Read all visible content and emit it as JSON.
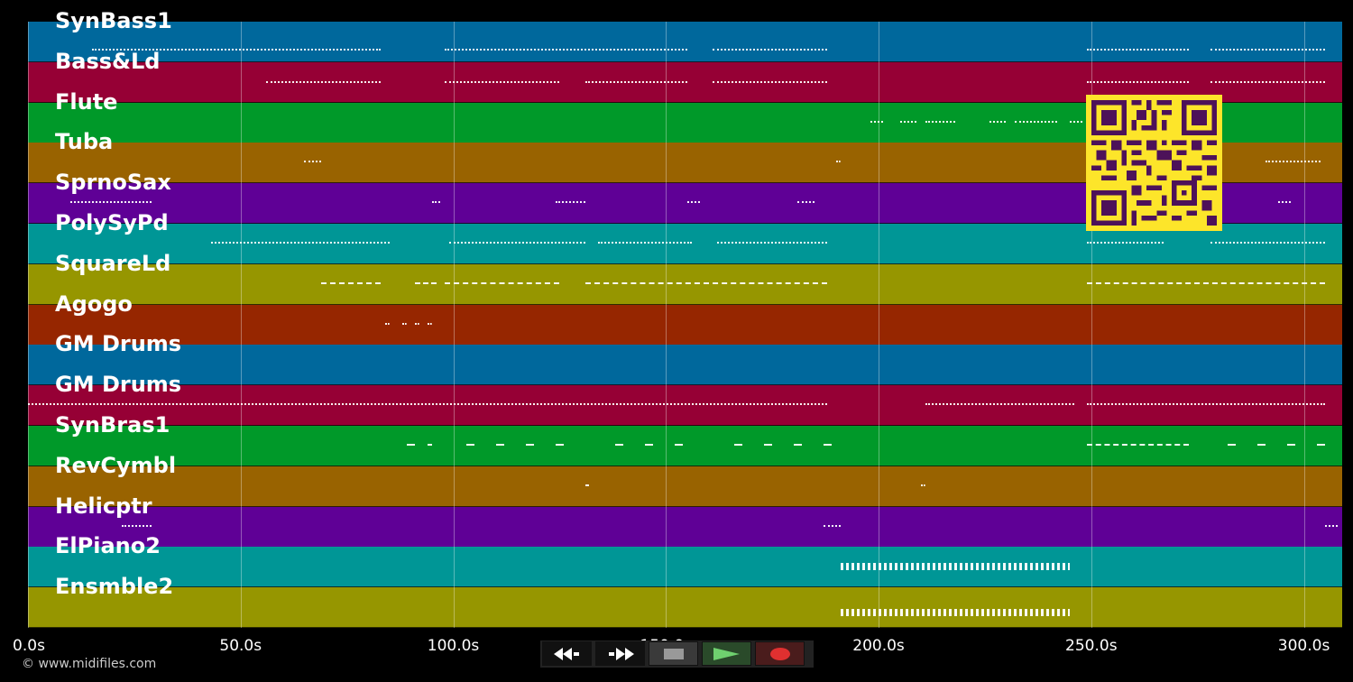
{
  "tracks": [
    {
      "name": "SynBass1",
      "color": "#00689c"
    },
    {
      "name": "Bass&Ld",
      "color": "#960035"
    },
    {
      "name": "Flute",
      "color": "#009929"
    },
    {
      "name": "Tuba",
      "color": "#996300"
    },
    {
      "name": "SprnoSax",
      "color": "#5f0096"
    },
    {
      "name": "PolySyPd",
      "color": "#009696"
    },
    {
      "name": "SquareLd",
      "color": "#969600"
    },
    {
      "name": "Agogo",
      "color": "#962600"
    },
    {
      "name": "GM Drums",
      "color": "#00689c"
    },
    {
      "name": "GM Drums",
      "color": "#960035"
    },
    {
      "name": "SynBras1",
      "color": "#009929"
    },
    {
      "name": "RevCymbl",
      "color": "#996300"
    },
    {
      "name": "Helicptr",
      "color": "#5f0096"
    },
    {
      "name": "ElPiano2",
      "color": "#009696"
    },
    {
      "name": "Ensmble2",
      "color": "#969600"
    }
  ],
  "timeline": {
    "ticks": [
      "0.0s",
      "50.0s",
      "100.0s",
      "150.0s",
      "200.0s",
      "250.0s",
      "300.0s"
    ],
    "tick_values": [
      0,
      50,
      100,
      150,
      200,
      250,
      300
    ],
    "range_seconds": [
      0,
      309
    ]
  },
  "notes": [
    {
      "track": 0,
      "spans": [
        [
          15,
          83
        ],
        [
          98,
          155
        ],
        [
          161,
          188
        ],
        [
          249,
          273
        ],
        [
          278,
          305
        ]
      ]
    },
    {
      "track": 1,
      "spans": [
        [
          56,
          83
        ],
        [
          98,
          125
        ],
        [
          131,
          155
        ],
        [
          161,
          188
        ],
        [
          249,
          273
        ],
        [
          278,
          305
        ]
      ]
    },
    {
      "track": 2,
      "spans": [
        [
          198,
          201
        ],
        [
          205,
          209
        ],
        [
          211,
          218
        ],
        [
          226,
          230
        ],
        [
          232,
          242
        ],
        [
          245,
          248
        ]
      ]
    },
    {
      "track": 3,
      "spans": [
        [
          65,
          69
        ],
        [
          190,
          191
        ],
        [
          291,
          304
        ]
      ]
    },
    {
      "track": 4,
      "spans": [
        [
          10,
          29
        ],
        [
          95,
          97
        ],
        [
          124,
          131
        ],
        [
          155,
          158
        ],
        [
          181,
          185
        ],
        [
          294,
          297
        ]
      ]
    },
    {
      "track": 5,
      "spans": [
        [
          43,
          85
        ],
        [
          99,
          131
        ],
        [
          134,
          156
        ],
        [
          162,
          188
        ],
        [
          249,
          267
        ],
        [
          278,
          305
        ]
      ]
    },
    {
      "track": 6,
      "spans": [
        [
          69,
          83
        ],
        [
          91,
          96
        ],
        [
          98,
          125
        ],
        [
          131,
          188
        ],
        [
          249,
          305
        ]
      ]
    },
    {
      "track": 7,
      "spans": [
        [
          84,
          85
        ],
        [
          88,
          89
        ],
        [
          91,
          92
        ],
        [
          94,
          95
        ]
      ]
    },
    {
      "track": 9,
      "spans": [
        [
          0,
          188
        ],
        [
          211,
          246
        ],
        [
          249,
          305
        ]
      ]
    },
    {
      "track": 10,
      "spans": [
        [
          89,
          91
        ],
        [
          94,
          95
        ],
        [
          103,
          105
        ],
        [
          110,
          112
        ],
        [
          117,
          119
        ],
        [
          124,
          126
        ],
        [
          138,
          140
        ],
        [
          145,
          147
        ],
        [
          152,
          154
        ],
        [
          166,
          168
        ],
        [
          173,
          175
        ],
        [
          180,
          182
        ],
        [
          187,
          189
        ],
        [
          249,
          273
        ],
        [
          282,
          284
        ],
        [
          289,
          291
        ],
        [
          296,
          298
        ],
        [
          303,
          305
        ]
      ]
    },
    {
      "track": 11,
      "spans": [
        [
          131,
          132
        ],
        [
          210,
          211
        ]
      ]
    },
    {
      "track": 12,
      "spans": [
        [
          22,
          29
        ],
        [
          187,
          191
        ],
        [
          305,
          308
        ]
      ]
    },
    {
      "track": 13,
      "spans": [
        [
          191,
          245
        ]
      ]
    },
    {
      "track": 14,
      "spans": [
        [
          191,
          245
        ]
      ]
    }
  ],
  "transport": {
    "rewind_icon": "rewind-icon",
    "fast_forward_icon": "fast-forward-icon",
    "stop_icon": "stop-icon",
    "play_icon": "play-icon",
    "record_icon": "record-icon"
  },
  "qr_code": "qr-code",
  "copyright": "© www.midifiles.com"
}
